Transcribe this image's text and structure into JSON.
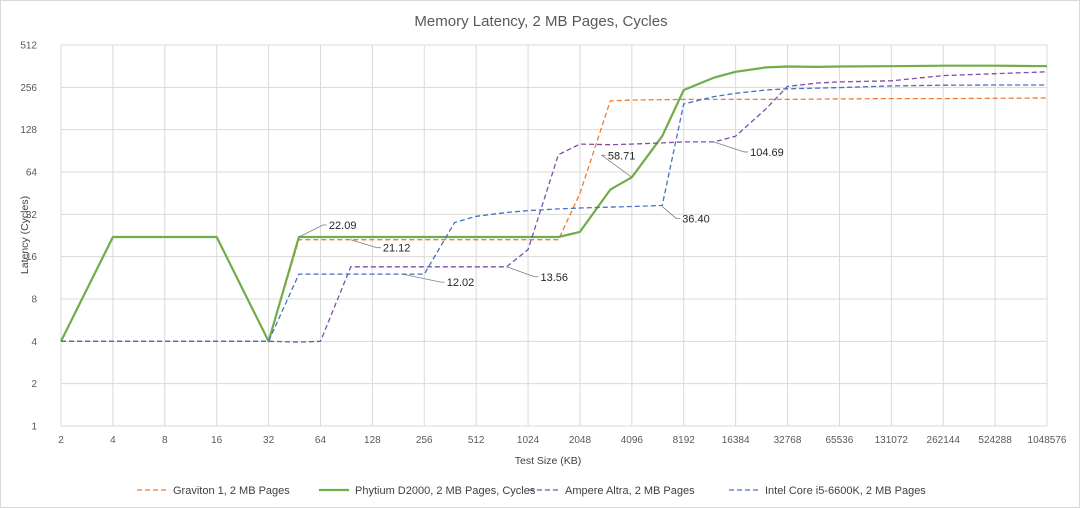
{
  "chart_data": {
    "type": "line",
    "title": "Memory Latency, 2 MB Pages, Cycles",
    "xlabel": "Test Size (KB)",
    "ylabel": "Latency (Cycles)",
    "x_scale": "log2",
    "y_scale": "log2",
    "x_ticks": [
      "2",
      "4",
      "8",
      "16",
      "32",
      "64",
      "128",
      "256",
      "512",
      "1024",
      "2048",
      "4096",
      "8192",
      "16384",
      "32768",
      "65536",
      "131072",
      "262144",
      "524288",
      "1048576"
    ],
    "y_ticks": [
      "1",
      "2",
      "4",
      "8",
      "16",
      "32",
      "64",
      "128",
      "256",
      "512"
    ],
    "xlim": [
      2,
      1048576
    ],
    "ylim": [
      1,
      512
    ],
    "grid": true,
    "legend_position": "bottom",
    "series": [
      {
        "name": "Graviton 1, 2 MB Pages",
        "color": "#ed7d31",
        "dash": true,
        "x": [
          2,
          4,
          8,
          16,
          32,
          48,
          64,
          96,
          128,
          192,
          256,
          384,
          512,
          768,
          1024,
          1536,
          2048,
          3072,
          4096,
          6144,
          8192,
          12288,
          16384,
          24576,
          32768,
          49152,
          65536,
          131072,
          262144,
          524288,
          1048576
        ],
        "y": [
          4,
          4,
          4,
          4,
          4,
          21.12,
          21.12,
          21.12,
          21.12,
          21.12,
          21.12,
          21.12,
          21.12,
          21.12,
          21.12,
          21.12,
          45,
          205,
          208,
          209,
          210,
          210,
          210,
          210,
          210,
          211,
          212,
          213,
          213,
          214,
          215
        ]
      },
      {
        "name": "Phytium D2000, 2 MB Pages, Cycles",
        "color": "#70ad47",
        "dash": false,
        "x": [
          2,
          4,
          8,
          16,
          32,
          48,
          64,
          96,
          128,
          192,
          256,
          384,
          512,
          768,
          1024,
          1536,
          2048,
          3072,
          4096,
          6144,
          8192,
          12288,
          16384,
          24576,
          32768,
          49152,
          65536,
          131072,
          262144,
          524288,
          1048576
        ],
        "y": [
          4,
          22.09,
          22.09,
          22.09,
          4,
          22.09,
          22.09,
          22.09,
          22.09,
          22.09,
          22.09,
          22.09,
          22.09,
          22.09,
          22.09,
          22.09,
          24,
          48,
          58.71,
          115,
          245,
          300,
          330,
          355,
          360,
          358,
          360,
          362,
          365,
          365,
          362
        ]
      },
      {
        "name": "Ampere Altra, 2 MB Pages",
        "color": "#7e4ea7",
        "dash": true,
        "x": [
          2,
          4,
          8,
          16,
          32,
          48,
          64,
          96,
          128,
          192,
          256,
          384,
          512,
          768,
          1024,
          1536,
          2048,
          3072,
          4096,
          6144,
          8192,
          12288,
          16384,
          24576,
          32768,
          49152,
          65536,
          131072,
          262144,
          524288,
          1048576
        ],
        "y": [
          4,
          4,
          4,
          4,
          4,
          3.95,
          4,
          13.56,
          13.56,
          13.56,
          13.56,
          13.56,
          13.56,
          13.56,
          18,
          85,
          101,
          100,
          101,
          103,
          104.69,
          104.69,
          115,
          180,
          260,
          275,
          280,
          285,
          310,
          320,
          330
        ]
      },
      {
        "name": "Intel Core i5-6600K, 2 MB Pages",
        "color": "#4472c4",
        "dash": true,
        "x": [
          2,
          4,
          8,
          16,
          32,
          48,
          64,
          96,
          128,
          192,
          256,
          384,
          512,
          768,
          1024,
          1536,
          2048,
          3072,
          4096,
          6144,
          8192,
          12288,
          16384,
          24576,
          32768,
          49152,
          65536,
          131072,
          262144,
          524288,
          1048576
        ],
        "y": [
          4,
          4,
          4,
          4,
          4,
          12.02,
          12.02,
          12.02,
          12.02,
          12.02,
          12.02,
          28,
          31,
          33,
          34,
          35,
          35.5,
          36,
          36.4,
          37,
          195,
          220,
          232,
          245,
          250,
          253,
          255,
          262,
          265,
          266,
          266
        ]
      }
    ],
    "data_labels": [
      {
        "text": "22.09",
        "series": "Phytium D2000, 2 MB Pages, Cycles",
        "x": 48,
        "y": 22.09
      },
      {
        "text": "21.12",
        "series": "Graviton 1, 2 MB Pages",
        "x": 96,
        "y": 21.12
      },
      {
        "text": "12.02",
        "series": "Intel Core i5-6600K, 2 MB Pages",
        "x": 192,
        "y": 12.02
      },
      {
        "text": "13.56",
        "series": "Ampere Altra, 2 MB Pages",
        "x": 768,
        "y": 13.56
      },
      {
        "text": "58.71",
        "series": "Phytium D2000, 2 MB Pages, Cycles",
        "x": 4096,
        "y": 58.71
      },
      {
        "text": "36.40",
        "series": "Intel Core i5-6600K, 2 MB Pages",
        "x": 6144,
        "y": 36.4
      },
      {
        "text": "104.69",
        "series": "Ampere Altra, 2 MB Pages",
        "x": 12288,
        "y": 104.69
      }
    ]
  }
}
